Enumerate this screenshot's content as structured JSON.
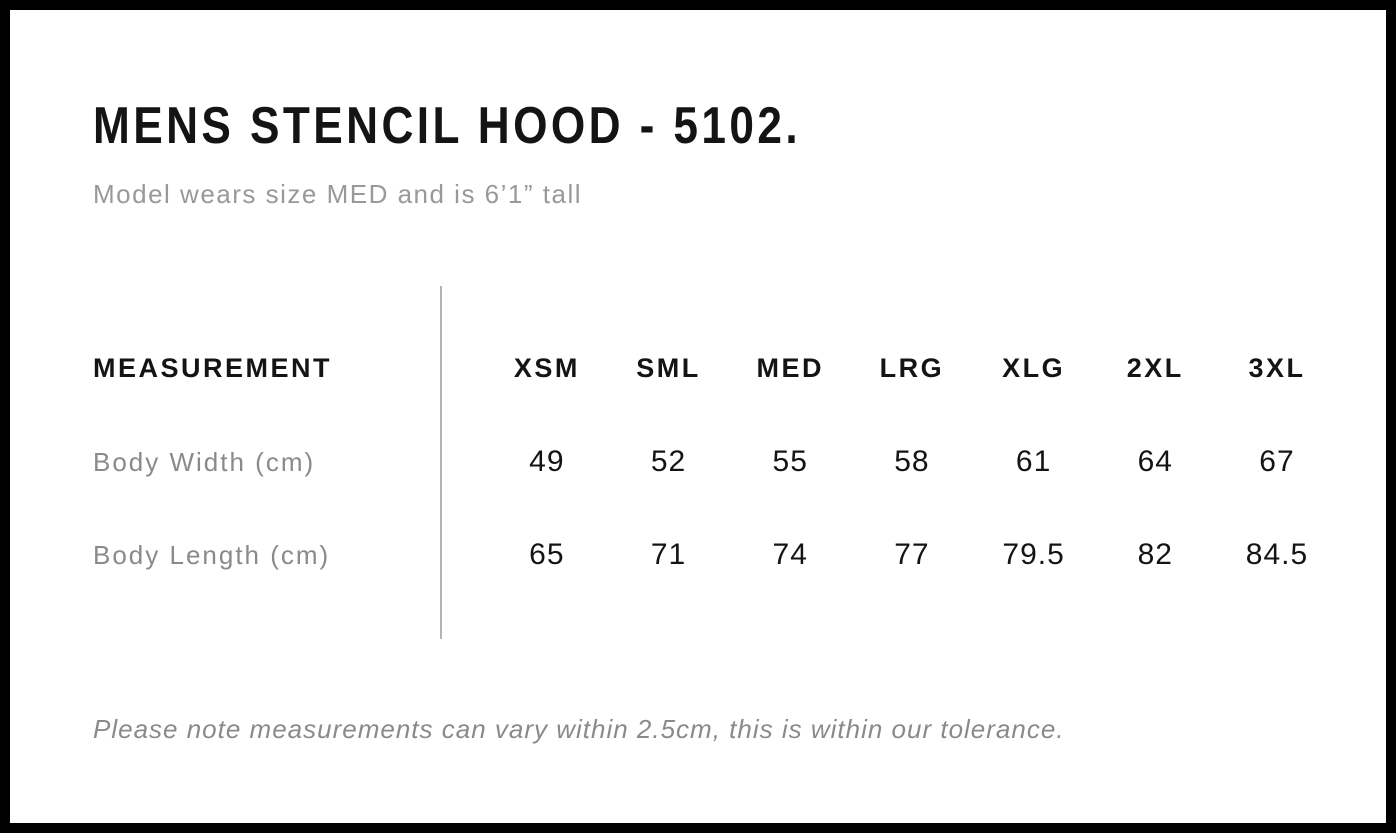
{
  "page": {
    "title": "MENS STENCIL HOOD - 5102.",
    "subtitle": "Model wears size MED and is 6’1” tall",
    "footnote": "Please note measurements can vary within 2.5cm, this is within our tolerance."
  },
  "size_chart": {
    "measurement_header": "MEASUREMENT",
    "size_headers": [
      "XSM",
      "SML",
      "MED",
      "LRG",
      "XLG",
      "2XL",
      "3XL"
    ],
    "rows": [
      {
        "label": "Body Width (cm)",
        "values": [
          "49",
          "52",
          "55",
          "58",
          "61",
          "64",
          "67"
        ]
      },
      {
        "label": "Body Length (cm)",
        "values": [
          "65",
          "71",
          "74",
          "77",
          "79.5",
          "82",
          "84.5"
        ]
      }
    ]
  },
  "chart_data": {
    "type": "table",
    "title": "MENS STENCIL HOOD - 5102.",
    "subtitle": "Model wears size MED and is 6’1” tall",
    "columns": [
      "MEASUREMENT",
      "XSM",
      "SML",
      "MED",
      "LRG",
      "XLG",
      "2XL",
      "3XL"
    ],
    "rows": [
      [
        "Body Width (cm)",
        49,
        52,
        55,
        58,
        61,
        64,
        67
      ],
      [
        "Body Length (cm)",
        65,
        71,
        74,
        77,
        79.5,
        82,
        84.5
      ]
    ],
    "note": "Please note measurements can vary within 2.5cm, this is within our tolerance."
  },
  "colors": {
    "frame_border": "#000000",
    "background": "#ffffff",
    "text_primary": "#141414",
    "text_muted": "#999999",
    "divider": "#b3b3b3"
  }
}
